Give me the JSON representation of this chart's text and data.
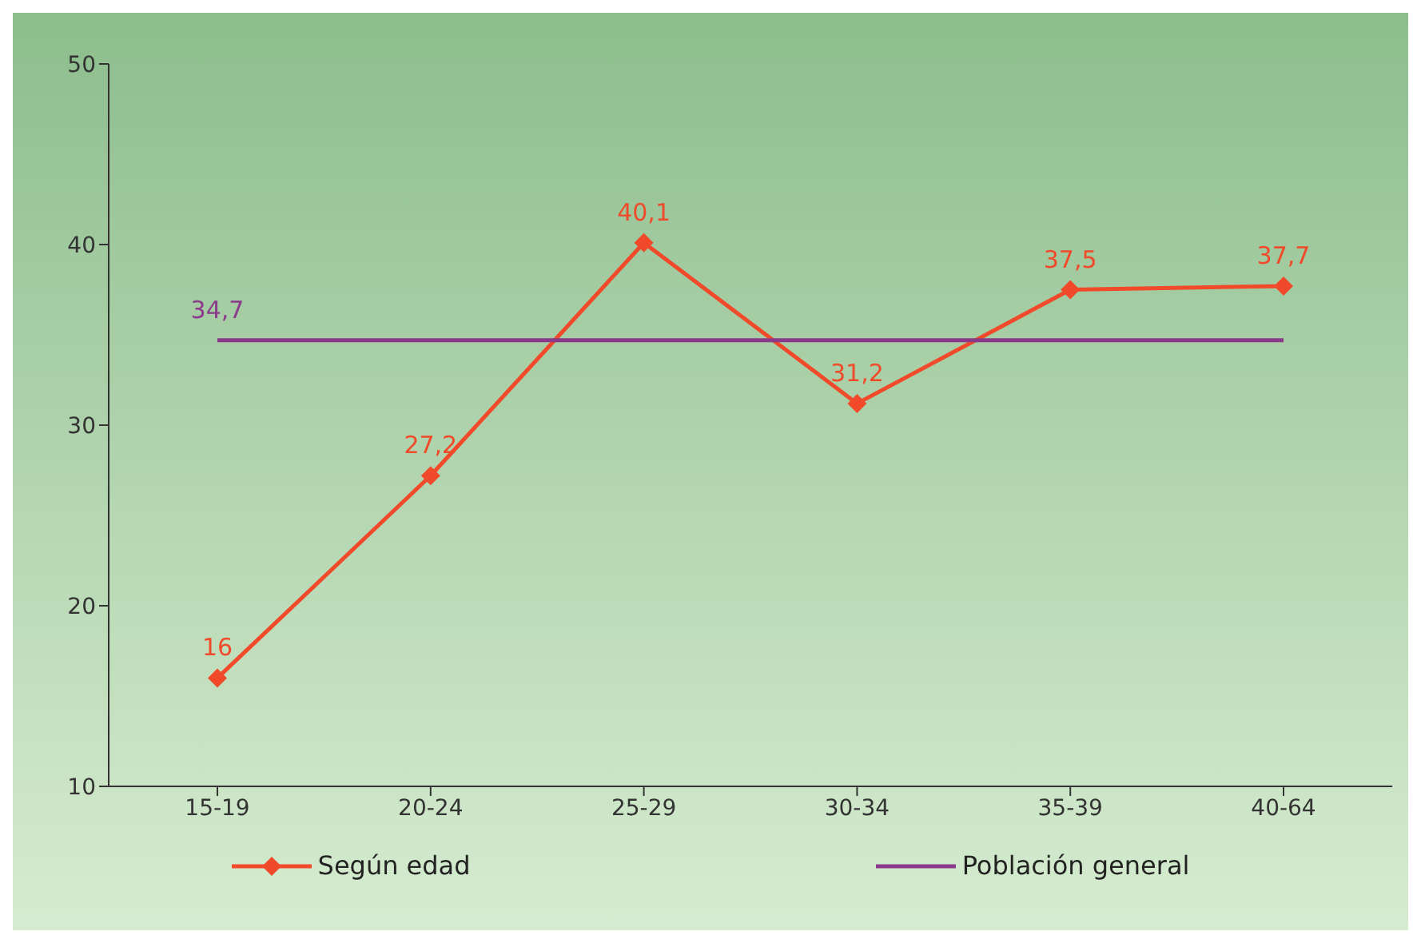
{
  "chart_data": {
    "type": "line",
    "categories": [
      "15-19",
      "20-24",
      "25-29",
      "30-34",
      "35-39",
      "40-64"
    ],
    "series": [
      {
        "name": "Según edad",
        "color": "#f04a2a",
        "values": [
          16,
          27.2,
          40.1,
          31.2,
          37.5,
          37.7
        ],
        "marker": "diamond",
        "value_labels": [
          "16",
          "27,2",
          "40,1",
          "31,2",
          "37,5",
          "37,7"
        ]
      },
      {
        "name": "Población general",
        "color": "#8b3a8b",
        "values": [
          34.7,
          34.7,
          34.7,
          34.7,
          34.7,
          34.7
        ],
        "marker": "none",
        "value_labels": [
          "34,7",
          null,
          null,
          null,
          null,
          null
        ]
      }
    ],
    "ylim": [
      10,
      50
    ],
    "yticks": [
      10,
      20,
      30,
      40,
      50
    ],
    "legend": "bottom"
  }
}
